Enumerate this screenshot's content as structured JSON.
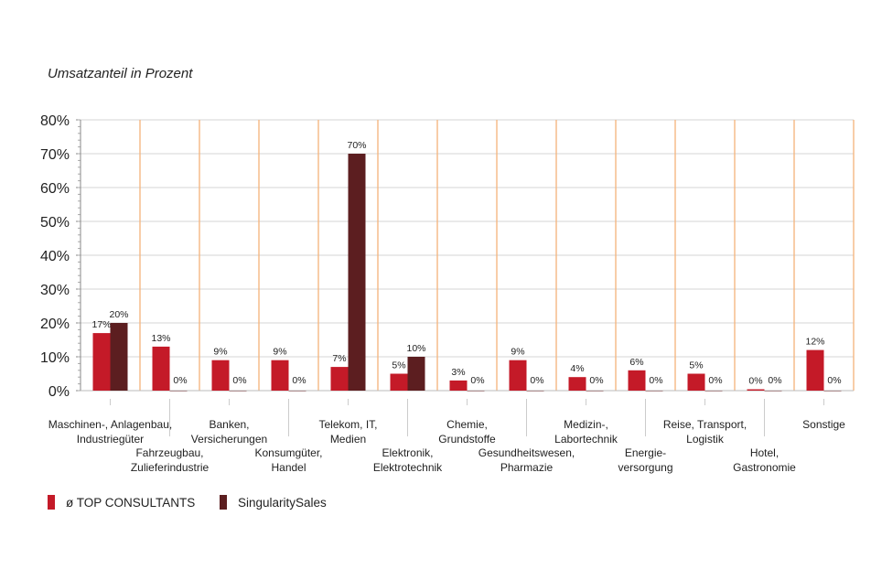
{
  "chart_data": {
    "type": "bar",
    "title": "Umsatzanteil in Prozent",
    "xlabel": "",
    "ylabel": "",
    "ylim": [
      0,
      80
    ],
    "yticks": [
      "0%",
      "10%",
      "20%",
      "30%",
      "40%",
      "50%",
      "60%",
      "70%",
      "80%"
    ],
    "grid": true,
    "legend_position": "bottom-left",
    "categories": [
      [
        "Maschinen-, Anlagenbau,",
        "Industriegüter"
      ],
      [
        "Fahrzeugbau,",
        "Zulieferindustrie"
      ],
      [
        "Banken,",
        "Versicherungen"
      ],
      [
        "Konsumgüter,",
        "Handel"
      ],
      [
        "Telekom, IT,",
        "Medien"
      ],
      [
        "Elektronik,",
        "Elektrotechnik"
      ],
      [
        "Chemie,",
        "Grundstoffe"
      ],
      [
        "Gesundheitswesen,",
        "Pharmazie"
      ],
      [
        "Medizin-,",
        "Labortechnik"
      ],
      [
        "Energie-",
        "versorgung"
      ],
      [
        "Reise, Transport,",
        "Logistik"
      ],
      [
        "Hotel,",
        "Gastronomie"
      ],
      [
        "Sonstige"
      ]
    ],
    "series": [
      {
        "name": "ø TOP CONSULTANTS",
        "color": "#c41a28",
        "values": [
          17,
          13,
          9,
          9,
          7,
          5,
          3,
          9,
          4,
          6,
          5,
          0.4,
          12
        ],
        "labels": [
          "17%",
          "13%",
          "9%",
          "9%",
          "7%",
          "5%",
          "3%",
          "9%",
          "4%",
          "6%",
          "5%",
          "0%",
          "12%"
        ]
      },
      {
        "name": "SingularitySales",
        "color": "#5c1e20",
        "values": [
          20,
          0,
          0,
          0,
          70,
          10,
          0,
          0,
          0,
          0,
          0,
          0,
          0
        ],
        "labels": [
          "20%",
          "0%",
          "0%",
          "0%",
          "70%",
          "10%",
          "0%",
          "0%",
          "0%",
          "0%",
          "0%",
          "0%",
          "0%"
        ]
      }
    ]
  }
}
